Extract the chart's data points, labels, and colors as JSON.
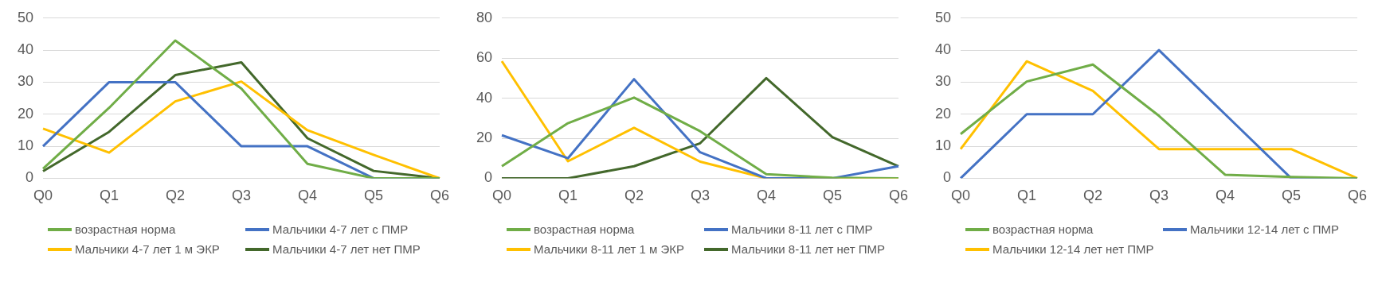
{
  "chart_data": [
    {
      "type": "line",
      "categories": [
        "Q0",
        "Q1",
        "Q2",
        "Q3",
        "Q4",
        "Q5",
        "Q6"
      ],
      "ylim": [
        0,
        50
      ],
      "yticks": [
        0,
        10,
        20,
        30,
        40,
        50
      ],
      "grid": "y",
      "legend": "bottom",
      "series": [
        {
          "name": "возрастная норма",
          "color": "#70ad47",
          "values": [
            3,
            22,
            43,
            28,
            4.5,
            0,
            0
          ]
        },
        {
          "name": "Мальчики 4-7 лет с ПМР",
          "color": "#4472c4",
          "values": [
            10,
            30,
            30,
            10,
            10,
            0,
            0
          ]
        },
        {
          "name": "Мальчики 4-7 лет 1 м ЭКР",
          "color": "#ffc000",
          "values": [
            15.5,
            8,
            24,
            30.2,
            15,
            7.3,
            0
          ]
        },
        {
          "name": "Мальчики 4-7 лет нет ПМР",
          "color": "#43682b",
          "values": [
            2.2,
            14.5,
            32.2,
            36.2,
            12.5,
            2.3,
            0
          ]
        }
      ]
    },
    {
      "type": "line",
      "categories": [
        "Q0",
        "Q1",
        "Q2",
        "Q3",
        "Q4",
        "Q5",
        "Q6"
      ],
      "ylim": [
        0,
        80
      ],
      "yticks": [
        0,
        20,
        40,
        60,
        80
      ],
      "grid": "y",
      "legend": "bottom",
      "series": [
        {
          "name": "возрастная норма",
          "color": "#70ad47",
          "values": [
            6,
            27.5,
            40.3,
            23.5,
            2,
            0.3,
            0
          ]
        },
        {
          "name": "Мальчики 8-11 лет с ПМР",
          "color": "#4472c4",
          "values": [
            21.5,
            10,
            49.5,
            13,
            0,
            0,
            6
          ]
        },
        {
          "name": "Мальчики 8-11 лет 1 м ЭКР",
          "color": "#ffc000",
          "values": [
            58.5,
            8.5,
            25.2,
            8.3,
            0,
            0,
            0
          ]
        },
        {
          "name": "Мальчики 8-11 лет нет ПМР",
          "color": "#43682b",
          "values": [
            0,
            0,
            6,
            17.5,
            50,
            20.5,
            6
          ]
        }
      ]
    },
    {
      "type": "line",
      "categories": [
        "Q0",
        "Q1",
        "Q2",
        "Q3",
        "Q4",
        "Q5",
        "Q6"
      ],
      "ylim": [
        0,
        50
      ],
      "yticks": [
        0,
        10,
        20,
        30,
        40,
        50
      ],
      "grid": "y",
      "legend": "bottom",
      "series": [
        {
          "name": "возрастная норма",
          "color": "#70ad47",
          "values": [
            13.8,
            30.2,
            35.5,
            19.5,
            1.1,
            0.4,
            0
          ]
        },
        {
          "name": "Мальчики 12-14 лет с ПМР",
          "color": "#4472c4",
          "values": [
            0,
            20,
            20,
            40,
            20,
            0,
            0
          ]
        },
        {
          "name": "Мальчики 12-14 лет нет ПМР",
          "color": "#ffc000",
          "values": [
            9.1,
            36.5,
            27.3,
            9.1,
            9.1,
            9.1,
            0
          ]
        }
      ]
    }
  ]
}
